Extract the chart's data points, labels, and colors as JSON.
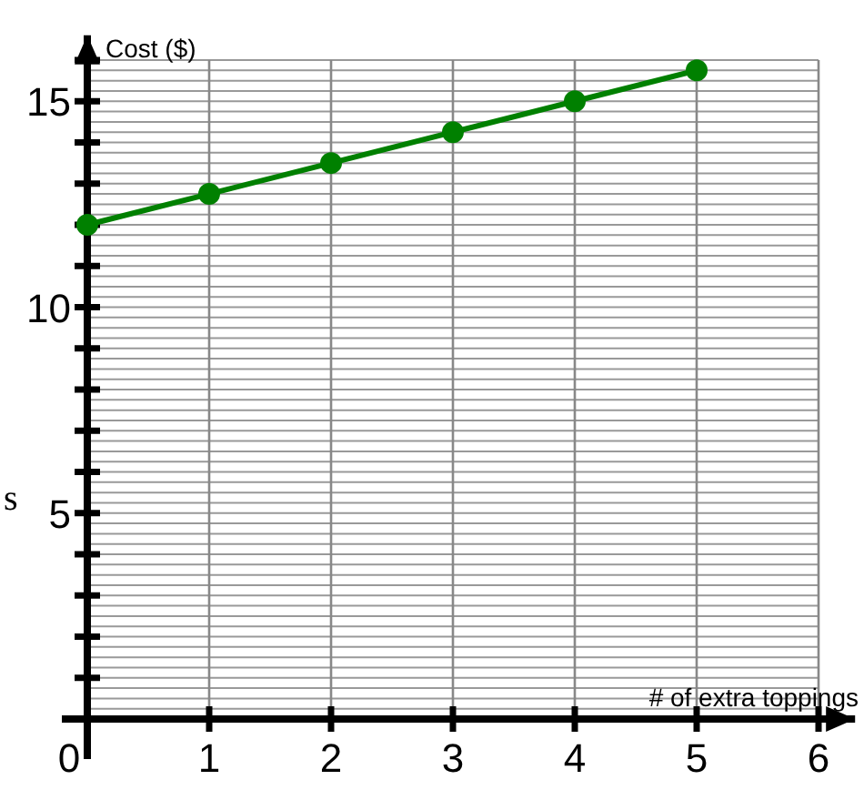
{
  "chart_data": {
    "type": "line",
    "xlabel": "# of extra toppings",
    "ylabel": "Cost ($)",
    "y2label": "s",
    "x": [
      0,
      1,
      2,
      3,
      4,
      5
    ],
    "series": [
      {
        "color": "#008000",
        "values": [
          12,
          12.75,
          13.5,
          14.25,
          15,
          15.75
        ]
      }
    ],
    "xlim": [
      0,
      6.3
    ],
    "ylim": [
      0,
      16.6
    ],
    "xticks": [
      0,
      1,
      2,
      3,
      4,
      5,
      6
    ],
    "yticks": [
      {
        "value": 1,
        "label": null
      },
      {
        "value": 2,
        "label": null
      },
      {
        "value": 3,
        "label": null
      },
      {
        "value": 4,
        "label": null
      },
      5,
      {
        "value": 6,
        "label": null
      },
      {
        "value": 7,
        "label": null
      },
      {
        "value": 8,
        "label": null
      },
      {
        "value": 9,
        "label": null
      },
      10,
      {
        "value": 11,
        "label": null
      },
      {
        "value": 12,
        "label": null
      },
      {
        "value": 13,
        "label": null
      },
      {
        "value": 14,
        "label": null
      },
      15,
      {
        "value": 16,
        "label": null
      }
    ],
    "grid": true,
    "marker": "circle",
    "line_style": "solid"
  }
}
